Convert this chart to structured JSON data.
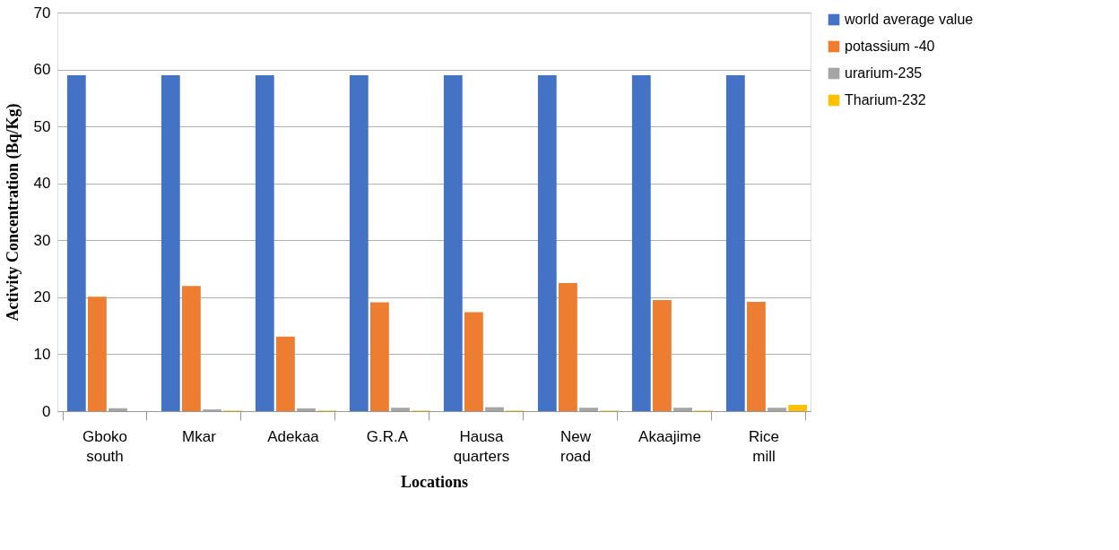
{
  "chart_data": {
    "type": "bar",
    "xlabel": "Locations",
    "ylabel": "Activity Concentration (Bq/Kg)",
    "categories": [
      "Gboko south",
      "Mkar",
      "Adekaa",
      "G.R.A",
      "Hausa quarters",
      "New road",
      "Akaajime",
      "Rice mill"
    ],
    "series": [
      {
        "name": "world average value",
        "color": "#4472c4",
        "values": [
          59,
          59,
          59,
          59,
          59,
          59,
          59,
          59
        ]
      },
      {
        "name": "potassium -40",
        "color": "#ed7d31",
        "values": [
          20.1,
          22,
          13.1,
          19.1,
          17.4,
          22.5,
          19.5,
          19.2
        ]
      },
      {
        "name": "urarium-235",
        "color": "#a5a5a5",
        "values": [
          0.5,
          0.3,
          0.5,
          0.6,
          0.7,
          0.6,
          0.6,
          0.6
        ]
      },
      {
        "name": "Tharium-232",
        "color": "#ffc000",
        "values": [
          0,
          0.1,
          0.1,
          0.1,
          0.1,
          0.1,
          0.1,
          1.1
        ]
      }
    ],
    "ylim": [
      0,
      70
    ],
    "yticks": [
      0,
      10,
      20,
      30,
      40,
      50,
      60,
      70
    ],
    "grid": "y",
    "legend": "right"
  }
}
